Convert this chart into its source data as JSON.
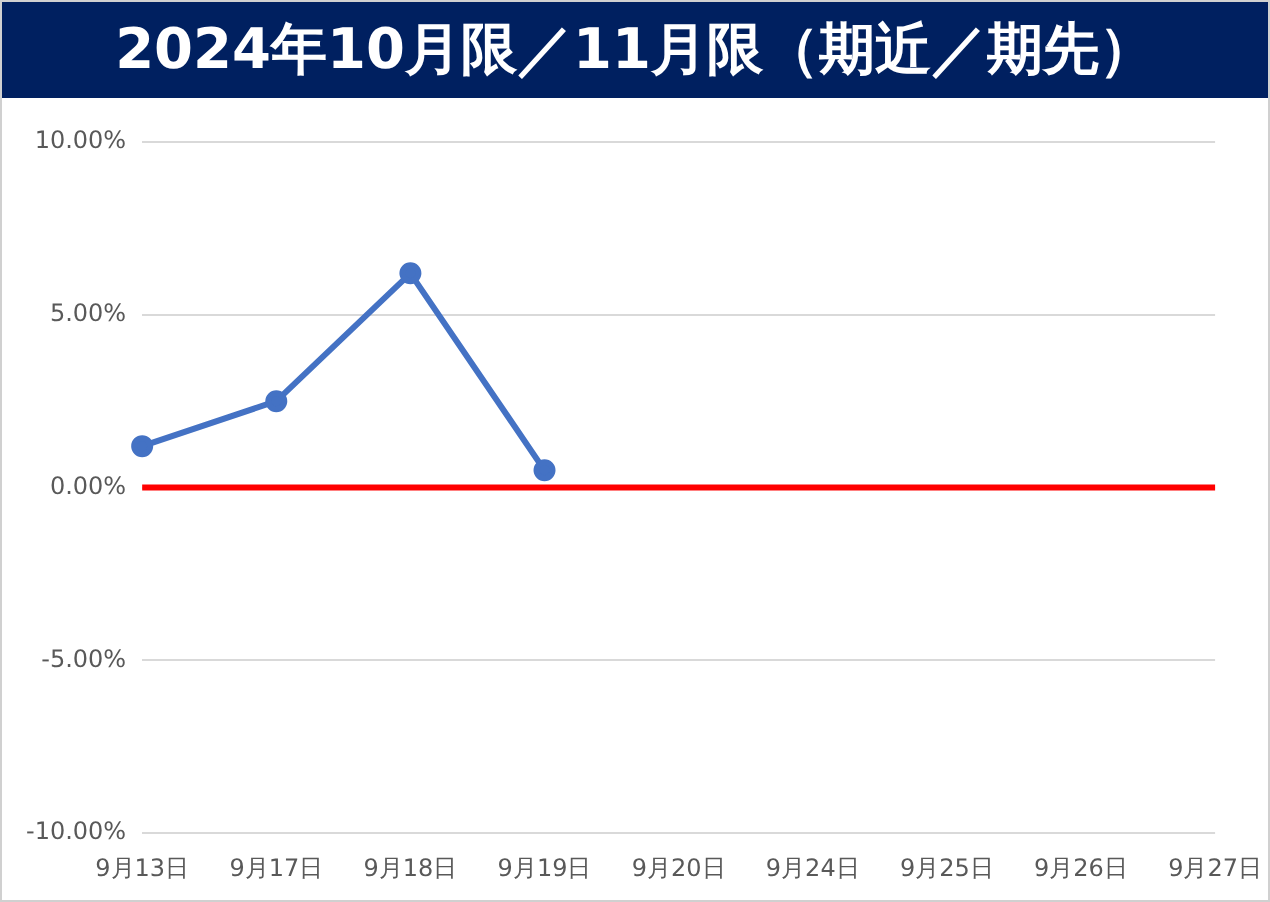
{
  "chart_data": {
    "type": "line",
    "title": "2024年10月限／11月限（期近／期先）",
    "categories": [
      "9月13日",
      "9月17日",
      "9月18日",
      "9月19日",
      "9月20日",
      "9月24日",
      "9月25日",
      "9月26日",
      "9月27日"
    ],
    "series": [
      {
        "color": "#4472c4",
        "values": [
          1.2,
          2.5,
          6.2,
          0.5,
          null,
          null,
          null,
          null,
          null
        ]
      }
    ],
    "ylim": [
      -10,
      10
    ],
    "yticks": [
      {
        "value": -10,
        "label": "-10.00%"
      },
      {
        "value": -5,
        "label": "-5.00%"
      },
      {
        "value": 0,
        "label": "0.00%"
      },
      {
        "value": 5,
        "label": "5.00%"
      },
      {
        "value": 10,
        "label": "10.00%"
      }
    ],
    "ref_lines": [
      {
        "axis": "y",
        "value": 0,
        "color": "#ff0000"
      }
    ],
    "grid": "y",
    "legend": false,
    "marker": "circle",
    "line_style": "solid"
  }
}
